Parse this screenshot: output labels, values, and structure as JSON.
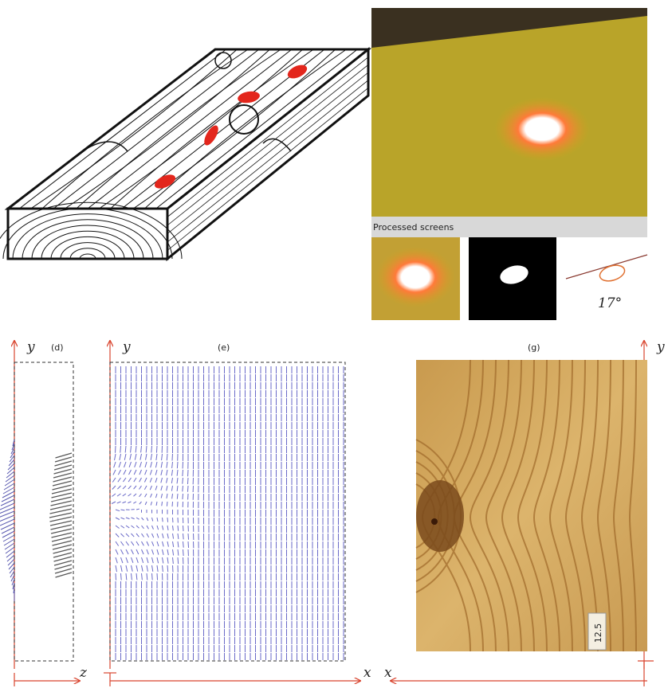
{
  "top_right": {
    "strip_label": "Processed screens",
    "angle_label": "17°"
  },
  "panel_d": {
    "label": "(d)",
    "y_axis": "y",
    "z_axis": "z"
  },
  "panel_e": {
    "label": "(e)",
    "y_axis": "y",
    "x_axis": "x"
  },
  "panel_g": {
    "label": "(g)",
    "y_axis": "y",
    "x_axis": "x",
    "tag": "12.5"
  }
}
